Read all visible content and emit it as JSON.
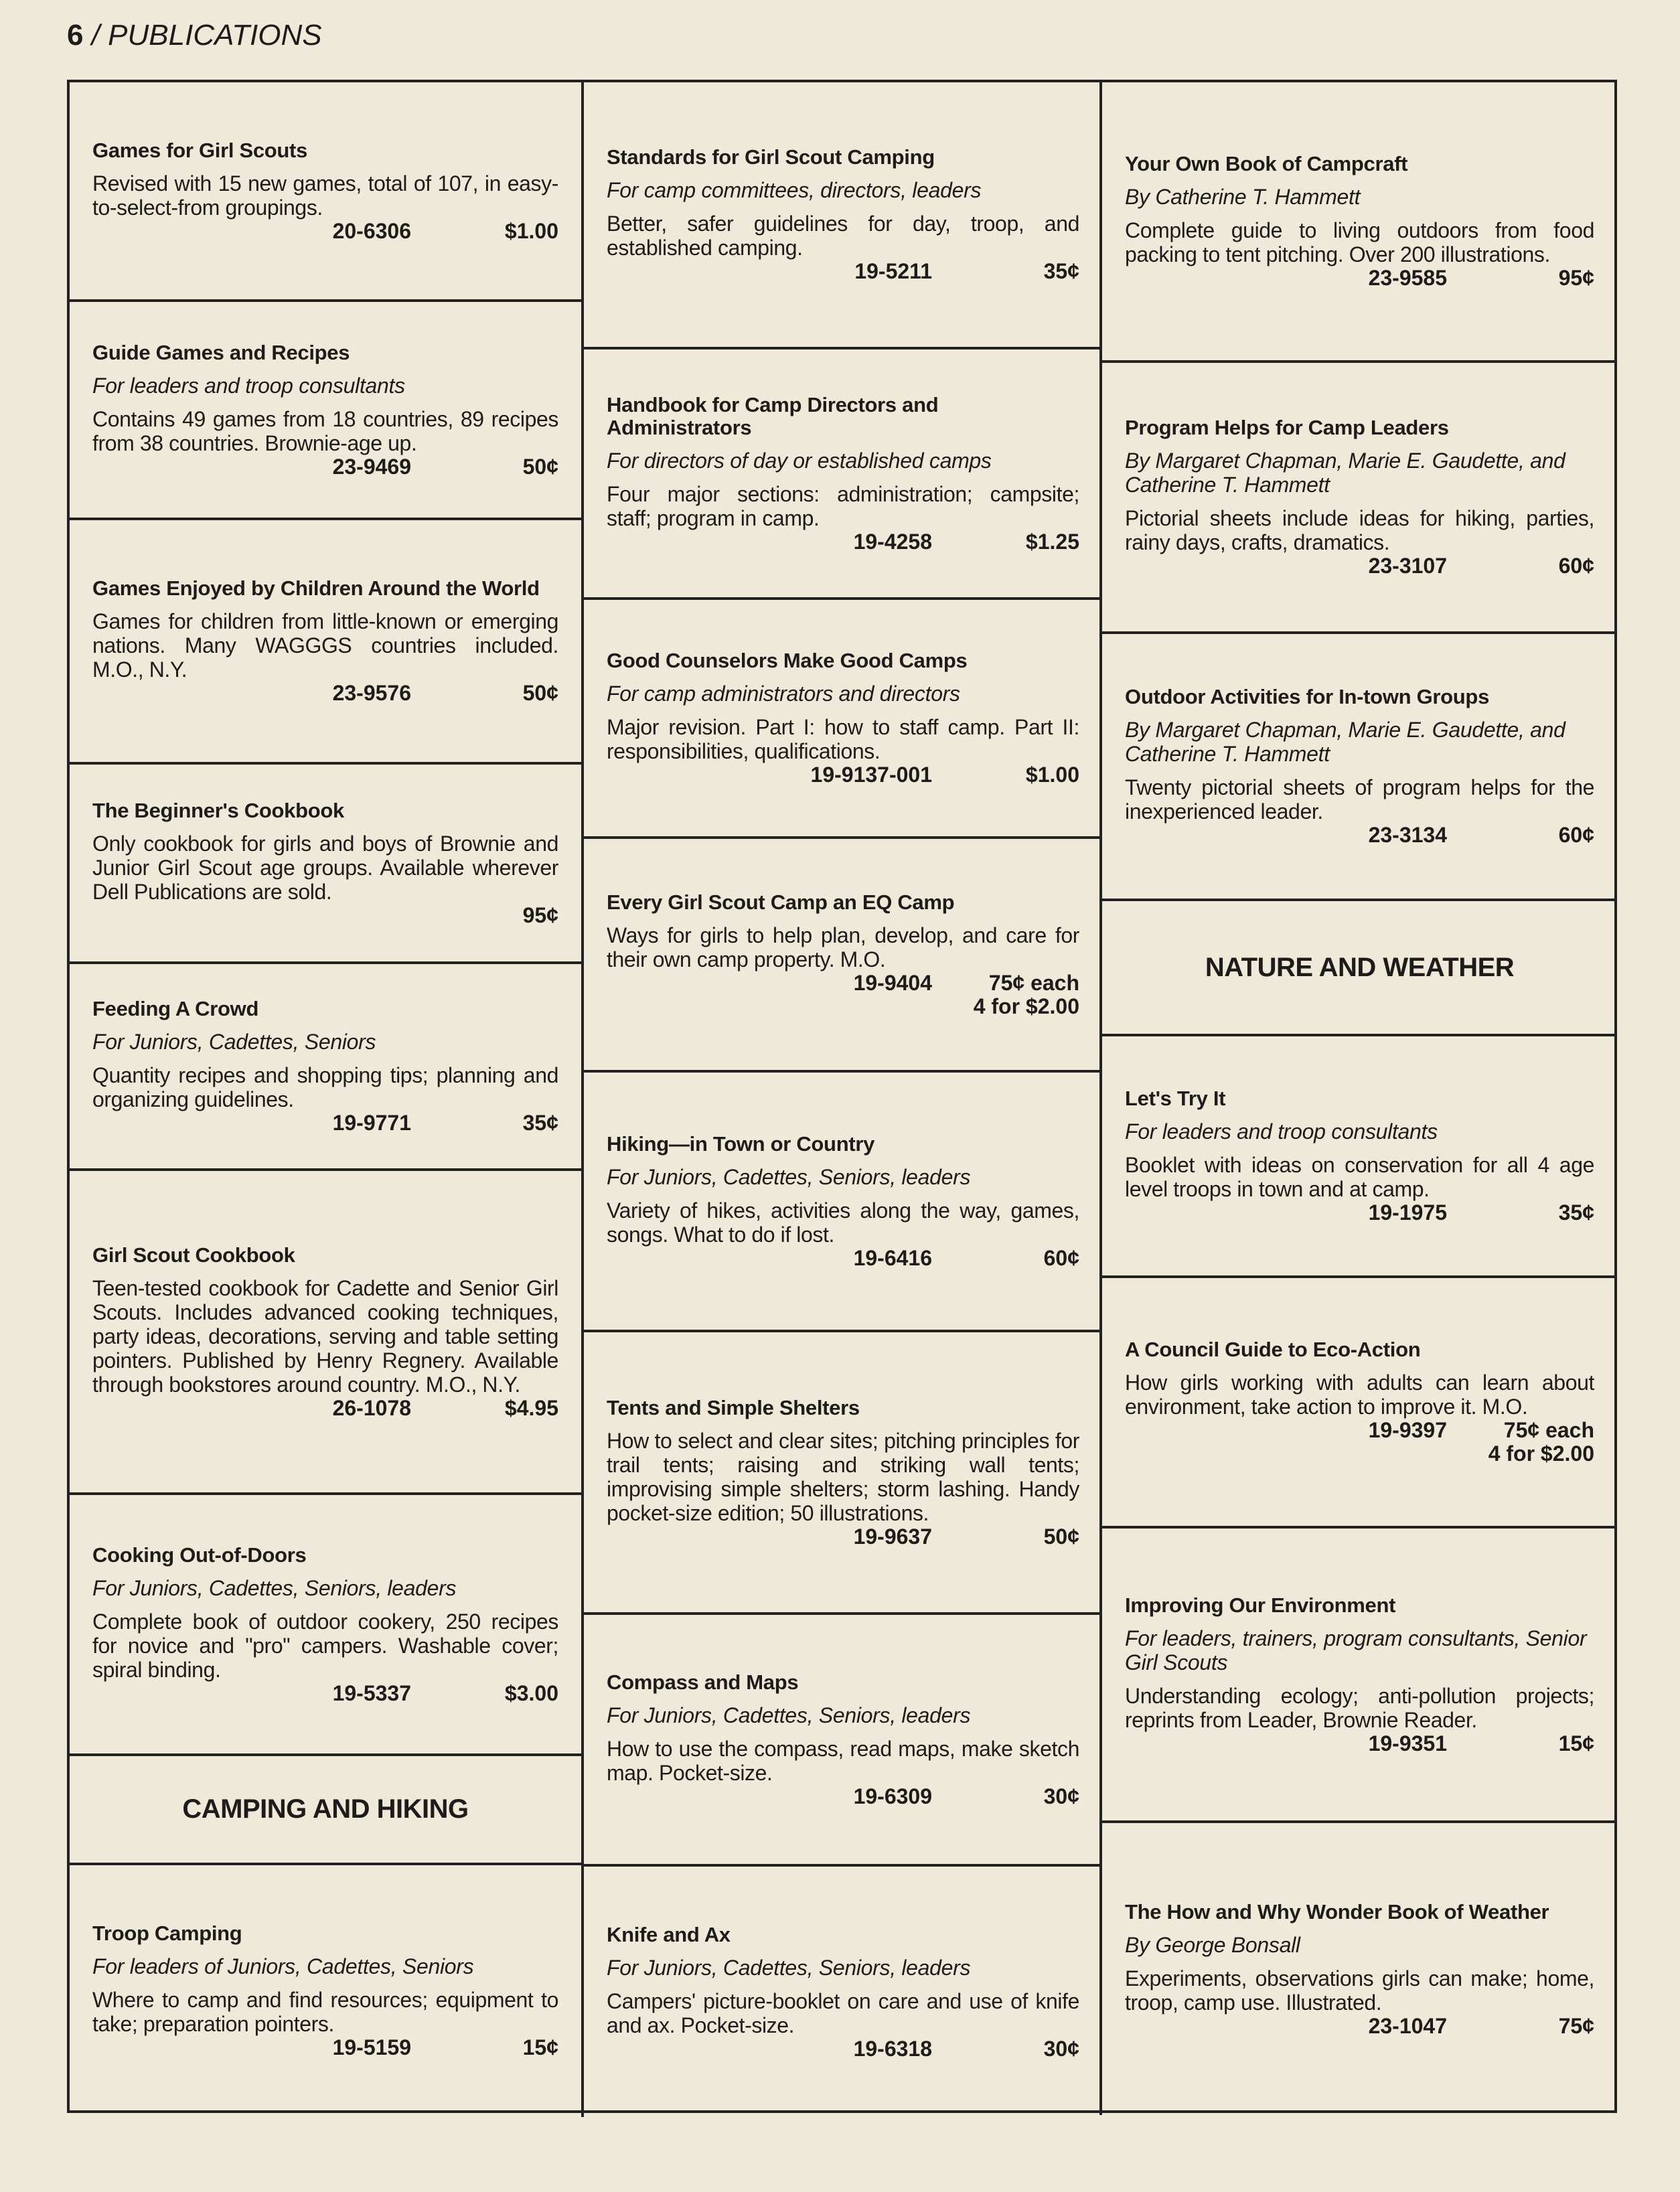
{
  "header": {
    "page_number": "6",
    "section": " / PUBLICATIONS"
  },
  "columns": [
    [
      {
        "title": "Games for Girl Scouts",
        "desc": "Revised with 15 new games, total of 107, in easy-to-select-from groupings.",
        "code": "20-6306",
        "price": "$1.00"
      },
      {
        "title": "Guide Games and Recipes",
        "subtitle": "For leaders and troop consultants",
        "desc": "Contains 49 games from 18 countries, 89 recipes from 38 countries. Brownie-age up.",
        "code": "23-9469",
        "price": "50¢"
      },
      {
        "title": "Games Enjoyed by Children Around the World",
        "desc": "Games for children from little-known or emerging nations. Many WAGGGS countries included. M.O., N.Y.",
        "code": "23-9576",
        "price": "50¢"
      },
      {
        "title": "The Beginner's Cookbook",
        "desc": "Only cookbook for girls and boys of Brownie and Junior Girl Scout age groups. Available wherever Dell Publications are sold.",
        "code": "",
        "price": "95¢"
      },
      {
        "title": "Feeding A Crowd",
        "subtitle": "For Juniors, Cadettes, Seniors",
        "desc": "Quantity recipes and shopping tips; planning and organizing guidelines.",
        "code": "19-9771",
        "price": "35¢"
      },
      {
        "title": "Girl Scout Cookbook",
        "desc": "Teen-tested cookbook for Cadette and Senior Girl Scouts. Includes advanced cooking techniques, party ideas, decorations, serving and table setting pointers. Published by Henry Regnery. Available through bookstores around country. M.O., N.Y.",
        "code": "26-1078",
        "price": "$4.95"
      },
      {
        "title": "Cooking Out-of-Doors",
        "subtitle": "For Juniors, Cadettes, Seniors, leaders",
        "desc": "Complete book of outdoor cookery, 250 recipes for novice and \"pro\" campers. Washable cover; spiral binding.",
        "code": "19-5337",
        "price": "$3.00"
      },
      {
        "heading": "CAMPING AND HIKING"
      },
      {
        "title": "Troop Camping",
        "subtitle": "For leaders of Juniors, Cadettes, Seniors",
        "desc": "Where to camp and find resources; equipment to take; preparation pointers.",
        "code": "19-5159",
        "price": "15¢"
      }
    ],
    [
      {
        "title": "Standards for Girl Scout Camping",
        "subtitle": "For camp committees, directors, leaders",
        "desc": "Better, safer guidelines for day, troop, and established camping.",
        "code": "19-5211",
        "price": "35¢"
      },
      {
        "title": "Handbook for Camp Directors and Administrators",
        "subtitle": "For directors of day or established camps",
        "desc": "Four major sections: administration; campsite; staff; program in camp.",
        "code": "19-4258",
        "price": "$1.25"
      },
      {
        "title": "Good Counselors Make Good Camps",
        "subtitle": "For camp administrators and directors",
        "desc": "Major revision. Part I: how to staff camp. Part II: responsibilities, qualifications.",
        "code": "19-9137-001",
        "price": "$1.00"
      },
      {
        "title": "Every Girl Scout Camp an EQ Camp",
        "desc": "Ways for girls to help plan, develop, and care for their own camp property. M.O.",
        "code": "19-9404",
        "price": "75¢ each\n4 for $2.00"
      },
      {
        "title": "Hiking—in Town or Country",
        "subtitle": "For Juniors, Cadettes, Seniors, leaders",
        "desc": "Variety of hikes, activities along the way, games, songs. What to do if lost.",
        "code": "19-6416",
        "price": "60¢"
      },
      {
        "title": "Tents and Simple Shelters",
        "desc": "How to select and clear sites; pitching principles for trail tents; raising and striking wall tents; improvising simple shelters; storm lashing. Handy pocket-size edition; 50 illustrations.",
        "code": "19-9637",
        "price": "50¢"
      },
      {
        "title": "Compass and Maps",
        "subtitle": "For Juniors, Cadettes, Seniors, leaders",
        "desc": "How to use the compass, read maps, make sketch map. Pocket-size.",
        "code": "19-6309",
        "price": "30¢"
      },
      {
        "title": "Knife and Ax",
        "subtitle": "For Juniors, Cadettes, Seniors, leaders",
        "desc": "Campers' picture-booklet on care and use of knife and ax. Pocket-size.",
        "code": "19-6318",
        "price": "30¢"
      }
    ],
    [
      {
        "title": "Your Own Book of Campcraft",
        "subtitle": "By Catherine T. Hammett",
        "desc": "Complete guide to living outdoors from food packing to tent pitching. Over 200 illustrations.",
        "code": "23-9585",
        "price": "95¢"
      },
      {
        "title": "Program Helps for Camp Leaders",
        "subtitle": "By Margaret Chapman, Marie E. Gaudette, and Catherine T. Hammett",
        "desc": "Pictorial sheets include ideas for hiking, parties, rainy days, crafts, dramatics.",
        "code": "23-3107",
        "price": "60¢"
      },
      {
        "title": "Outdoor Activities for In-town Groups",
        "subtitle": "By Margaret Chapman, Marie E. Gaudette, and Catherine T. Hammett",
        "desc": "Twenty pictorial sheets of program helps for the inexperienced leader.",
        "code": "23-3134",
        "price": "60¢"
      },
      {
        "heading": "NATURE AND WEATHER"
      },
      {
        "title": "Let's Try It",
        "subtitle": "For leaders and troop consultants",
        "desc": "Booklet with ideas on conservation for all 4 age level troops in town and at camp.",
        "code": "19-1975",
        "price": "35¢"
      },
      {
        "title": "A Council Guide to Eco-Action",
        "desc": "How girls working with adults can learn about environment, take action to improve it. M.O.",
        "code": "19-9397",
        "price": "75¢ each\n4 for $2.00"
      },
      {
        "title": "Improving Our Environment",
        "subtitle": "For leaders, trainers, program consultants, Senior Girl Scouts",
        "desc": "Understanding ecology; anti-pollution projects; reprints from Leader, Brownie Reader.",
        "code": "19-9351",
        "price": "15¢"
      },
      {
        "title": "The How and Why Wonder Book of Weather",
        "subtitle": "By George Bonsall",
        "desc": "Experiments, observations girls can make; home, troop, camp use. Illustrated.",
        "code": "23-1047",
        "price": "75¢"
      }
    ]
  ]
}
